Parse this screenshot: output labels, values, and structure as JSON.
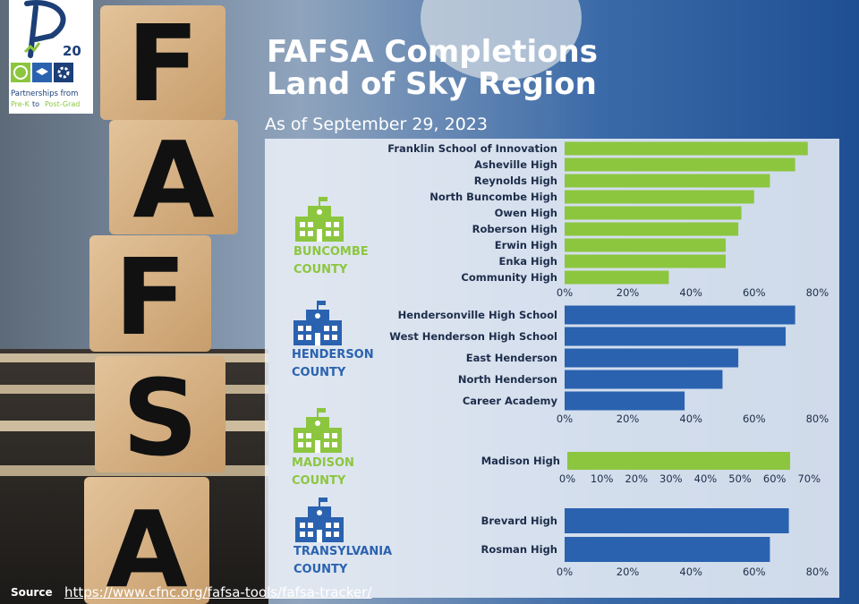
{
  "title_line1": "FAFSA  Completions",
  "title_line2": "Land of Sky Region",
  "subtitle": "As of September 29, 2023",
  "logo": {
    "text": "20",
    "tagline1": "Partnerships from",
    "tagline2_a": "Pre-K",
    "tagline2_b": " to ",
    "tagline2_c": "Post-Grad"
  },
  "blocks": {
    "f": "F",
    "a1": "A",
    "f2": "F",
    "s": "S",
    "a2": "A"
  },
  "colors": {
    "green": "#8cc63f",
    "blue": "#2a62b0",
    "navy": "#1c3f78",
    "text": "#1d2d4a"
  },
  "counties": [
    {
      "line1": "BUNCOMBE",
      "line2": "COUNTY",
      "color": "#8cc63f"
    },
    {
      "line1": "HENDERSON",
      "line2": "COUNTY",
      "color": "#2a62b0"
    },
    {
      "line1": "MADISON",
      "line2": "COUNTY",
      "color": "#8cc63f"
    },
    {
      "line1": "TRANSYLVANIA",
      "line2": "COUNTY",
      "color": "#2a62b0"
    }
  ],
  "chart_data": [
    {
      "type": "bar",
      "orientation": "horizontal",
      "county": "BUNCOMBE COUNTY",
      "categories": [
        "Franklin School of Innovation",
        "Asheville High",
        "Reynolds High",
        "North Buncombe High",
        "Owen High",
        "Roberson High",
        "Erwin High",
        "Enka High",
        "Community High"
      ],
      "values": [
        0.77,
        0.73,
        0.65,
        0.6,
        0.56,
        0.55,
        0.51,
        0.51,
        0.33
      ],
      "xlim": [
        0,
        0.85
      ],
      "ticks": [
        "0%",
        "20%",
        "40%",
        "60%",
        "80%"
      ],
      "tick_values": [
        0,
        0.2,
        0.4,
        0.6,
        0.8
      ],
      "color": "#8cc63f"
    },
    {
      "type": "bar",
      "orientation": "horizontal",
      "county": "HENDERSON COUNTY",
      "categories": [
        "Hendersonville High School",
        "West Henderson High School",
        "East Henderson",
        "North Henderson",
        "Career Academy"
      ],
      "values": [
        0.73,
        0.7,
        0.55,
        0.5,
        0.38
      ],
      "xlim": [
        0,
        0.85
      ],
      "ticks": [
        "0%",
        "20%",
        "40%",
        "60%",
        "80%"
      ],
      "tick_values": [
        0,
        0.2,
        0.4,
        0.6,
        0.8
      ],
      "color": "#2a62b0"
    },
    {
      "type": "bar",
      "orientation": "horizontal",
      "county": "MADISON COUNTY",
      "categories": [
        "Madison High"
      ],
      "values": [
        0.645
      ],
      "xlim": [
        0,
        0.72
      ],
      "ticks": [
        "0%",
        "10%",
        "20%",
        "30%",
        "40%",
        "50%",
        "60%",
        "70%"
      ],
      "tick_values": [
        0,
        0.1,
        0.2,
        0.3,
        0.4,
        0.5,
        0.6,
        0.7
      ],
      "color": "#8cc63f"
    },
    {
      "type": "bar",
      "orientation": "horizontal",
      "county": "TRANSYLVANIA COUNTY",
      "categories": [
        "Brevard High",
        "Rosman High"
      ],
      "values": [
        0.71,
        0.65
      ],
      "xlim": [
        0,
        0.85
      ],
      "ticks": [
        "0%",
        "20%",
        "40%",
        "60%",
        "80%"
      ],
      "tick_values": [
        0,
        0.2,
        0.4,
        0.6,
        0.8
      ],
      "color": "#2a62b0"
    }
  ],
  "source_label": "Source",
  "source_url": "https://www.cfnc.org/fafsa-tools/fafsa-tracker/"
}
